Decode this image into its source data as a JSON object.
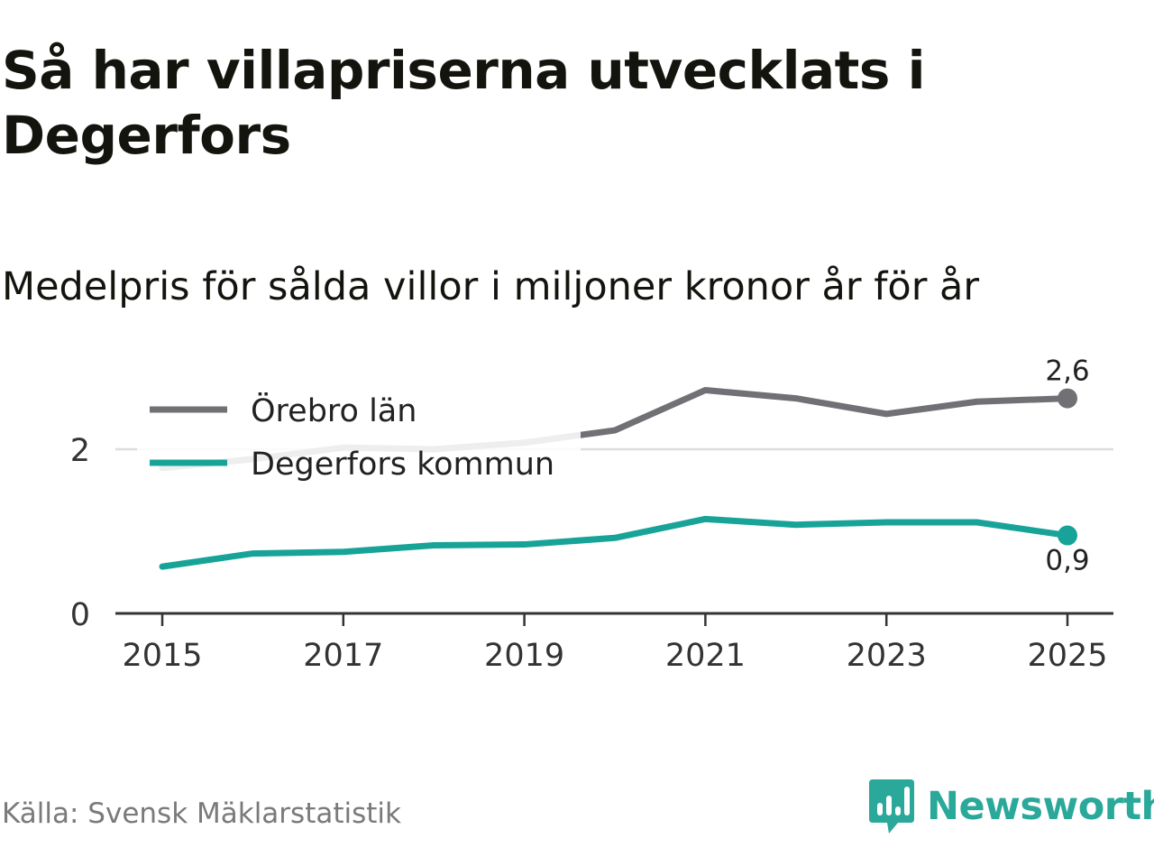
{
  "header": {
    "title": "Så har villapriserna utvecklats i Degerfors",
    "subtitle": "Medelpris för sålda villor i miljoner kronor år för år"
  },
  "footer": {
    "source": "Källa: Svensk Mäklarstatistik",
    "brand": "Newsworthy"
  },
  "colors": {
    "orebro": "#707075",
    "degerfors": "#18a398",
    "brand": "#2aa89a",
    "grid": "#dddddd",
    "axis": "#333333"
  },
  "chart_data": {
    "type": "line",
    "title": "Så har villapriserna utvecklats i Degerfors",
    "subtitle": "Medelpris för sålda villor i miljoner kronor år för år",
    "xlabel": "",
    "ylabel": "",
    "x": [
      2015,
      2016,
      2017,
      2018,
      2019,
      2020,
      2021,
      2022,
      2023,
      2024,
      2025
    ],
    "xticks": [
      "2015",
      "2017",
      "2019",
      "2021",
      "2023",
      "2025"
    ],
    "yticks": [
      "0",
      "2"
    ],
    "ylim": [
      0,
      3
    ],
    "grid": true,
    "legend_position": "top-left",
    "series": [
      {
        "name": "Örebro län",
        "values": [
          1.77,
          1.88,
          2.02,
          2.0,
          2.08,
          2.23,
          2.72,
          2.62,
          2.43,
          2.58,
          2.62
        ],
        "end_label": "2,6"
      },
      {
        "name": "Degerfors kommun",
        "values": [
          0.57,
          0.73,
          0.75,
          0.83,
          0.84,
          0.92,
          1.15,
          1.08,
          1.11,
          1.11,
          0.95
        ],
        "end_label": "0,9"
      }
    ]
  }
}
